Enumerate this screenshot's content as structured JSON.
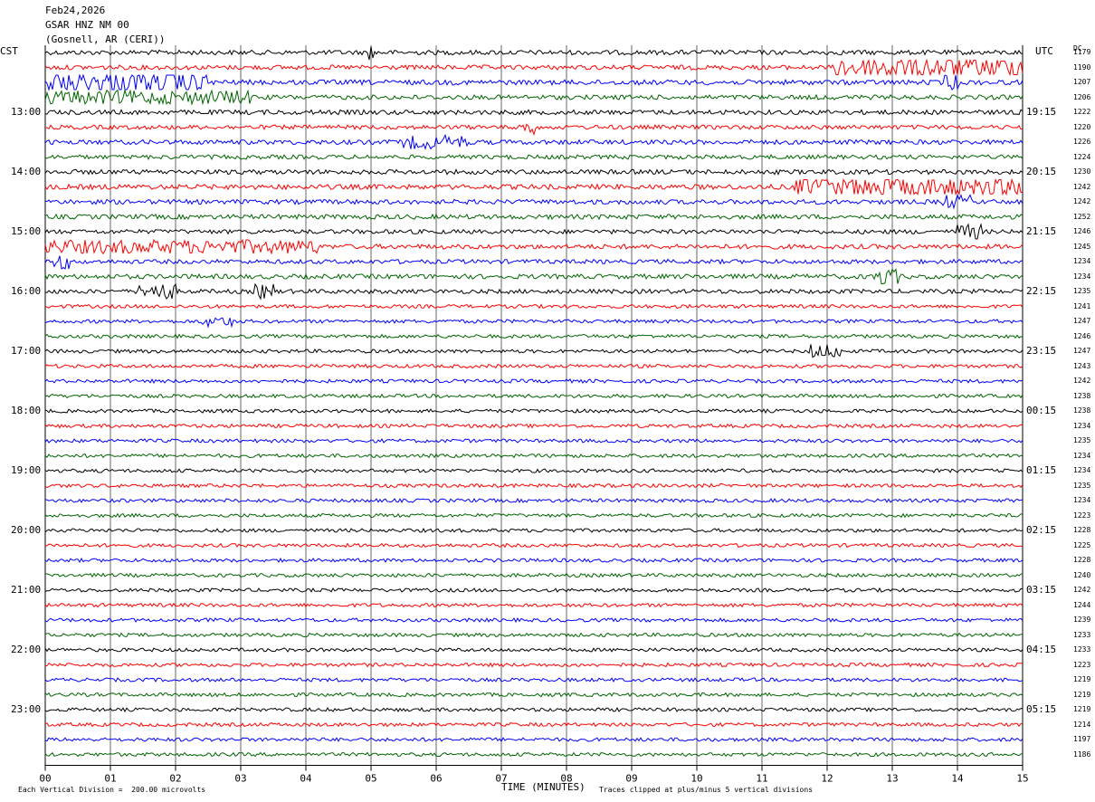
{
  "header": {
    "date": "Feb24,2026",
    "station": "GSAR HNZ NM 00",
    "location": "(Gosnell, AR (CERI))"
  },
  "labels": {
    "left_tz": "CST",
    "right_tz": "UTC",
    "dc": "DC",
    "xlabel": "TIME (MINUTES)",
    "scale_note": "Each Vertical Division =  200.00 microvolts",
    "clip_note": "Traces clipped at plus/minus 5 vertical divisions"
  },
  "colors": {
    "trace_cycle": [
      "#000000",
      "#ff0000",
      "#0000ff",
      "#006400"
    ],
    "grid": "#000000",
    "background": "#ffffff"
  },
  "chart_data": {
    "type": "line",
    "xlim": [
      0,
      15
    ],
    "x_ticks": [
      "00",
      "01",
      "02",
      "03",
      "04",
      "05",
      "06",
      "07",
      "08",
      "09",
      "10",
      "11",
      "12",
      "13",
      "14",
      "15"
    ],
    "row_count": 48,
    "left_hour_labels": [
      "13:00",
      "14:00",
      "15:00",
      "16:00",
      "17:00",
      "18:00",
      "19:00",
      "20:00",
      "21:00",
      "22:00",
      "23:00"
    ],
    "left_label_start_row": 4,
    "right_hour_labels": [
      "19:15",
      "20:15",
      "21:15",
      "22:15",
      "23:15",
      "00:15",
      "01:15",
      "02:15",
      "03:15",
      "04:15",
      "05:15"
    ],
    "dc_offsets": [
      1179,
      1190,
      1207,
      1206,
      1222,
      1220,
      1226,
      1224,
      1230,
      1242,
      1242,
      1252,
      1246,
      1245,
      1234,
      1234,
      1235,
      1241,
      1247,
      1246,
      1247,
      1243,
      1242,
      1238,
      1238,
      1234,
      1235,
      1234,
      1234,
      1235,
      1234,
      1223,
      1228,
      1225,
      1228,
      1240,
      1242,
      1244,
      1239,
      1233,
      1233,
      1223,
      1219,
      1219,
      1219,
      1214,
      1197,
      1186
    ],
    "noise_level": [
      1.3,
      1.3,
      1.4,
      1.3,
      1.3,
      1.2,
      1.3,
      1.2,
      1.3,
      1.4,
      1.3,
      1.3,
      1.2,
      1.3,
      1.2,
      1.3,
      1.2,
      1.0,
      1.0,
      1.0,
      1.0,
      1.0,
      1.0,
      1.0,
      1.0,
      1.0,
      1.0,
      1.0,
      1.0,
      1.0,
      1.0,
      1.0,
      1.0,
      1.0,
      1.0,
      1.0,
      1.0,
      1.0,
      1.0,
      1.0,
      1.0,
      1.0,
      1.0,
      1.0,
      1.0,
      1.0,
      1.0,
      1.0
    ],
    "events": [
      {
        "row": 0,
        "start": 4.95,
        "end": 5.05,
        "amp": 5
      },
      {
        "row": 1,
        "start": 12.1,
        "end": 15.0,
        "amp": 5
      },
      {
        "row": 2,
        "start": 0.0,
        "end": 2.5,
        "amp": 5
      },
      {
        "row": 2,
        "start": 13.8,
        "end": 14.0,
        "amp": 4
      },
      {
        "row": 3,
        "start": 0.0,
        "end": 3.2,
        "amp": 3
      },
      {
        "row": 5,
        "start": 7.3,
        "end": 7.5,
        "amp": 5
      },
      {
        "row": 6,
        "start": 5.5,
        "end": 6.5,
        "amp": 3
      },
      {
        "row": 9,
        "start": 11.5,
        "end": 15.0,
        "amp": 4
      },
      {
        "row": 10,
        "start": 13.7,
        "end": 14.2,
        "amp": 3
      },
      {
        "row": 12,
        "start": 14.0,
        "end": 14.4,
        "amp": 4
      },
      {
        "row": 13,
        "start": 0.0,
        "end": 4.2,
        "amp": 3
      },
      {
        "row": 14,
        "start": 0.1,
        "end": 0.4,
        "amp": 4
      },
      {
        "row": 15,
        "start": 12.7,
        "end": 13.1,
        "amp": 5
      },
      {
        "row": 16,
        "start": 1.4,
        "end": 2.0,
        "amp": 4
      },
      {
        "row": 16,
        "start": 3.2,
        "end": 3.5,
        "amp": 4
      },
      {
        "row": 18,
        "start": 2.4,
        "end": 2.9,
        "amp": 3
      },
      {
        "row": 20,
        "start": 11.7,
        "end": 12.2,
        "amp": 4
      }
    ]
  }
}
